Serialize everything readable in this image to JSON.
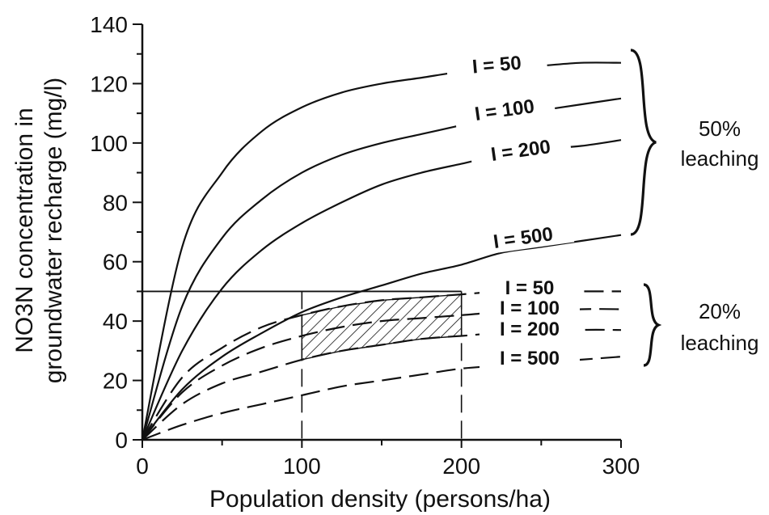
{
  "chart_data": {
    "type": "line",
    "title": "",
    "xlabel": "Population density (persons/ha)",
    "ylabel_line1": "NO3N concentration in",
    "ylabel_line2": "groundwater recharge (mg/l)",
    "xlim": [
      0,
      300
    ],
    "ylim": [
      0,
      140
    ],
    "xticks": [
      0,
      100,
      200,
      300
    ],
    "yticks": [
      0,
      20,
      40,
      60,
      80,
      100,
      120,
      140
    ],
    "x": [
      0,
      25,
      50,
      75,
      100,
      125,
      150,
      175,
      200,
      225,
      250,
      275,
      300
    ],
    "groups": [
      {
        "label_line1": "50%",
        "label_line2": "leaching",
        "style": "solid",
        "series": [
          {
            "name": "I = 50",
            "values": [
              0,
              65,
              90,
              104,
              112,
              117,
              120,
              122,
              124,
              125,
              126,
              127,
              127
            ]
          },
          {
            "name": "I = 100",
            "values": [
              0,
              45,
              68,
              81,
              90,
              96,
              100,
              103,
              106,
              109,
              111,
              113,
              115
            ]
          },
          {
            "name": "I = 200",
            "values": [
              0,
              30,
              51,
              64,
              73,
              80,
              86,
              90,
              93,
              96,
              98,
              99,
              101
            ]
          },
          {
            "name": "I = 500",
            "values": [
              0,
              17,
              28,
              36,
              43,
              48,
              52,
              56,
              59,
              63,
              65,
              67,
              69
            ]
          }
        ]
      },
      {
        "label_line1": "20%",
        "label_line2": "leaching",
        "style": "dashed",
        "series": [
          {
            "name": "I = 50",
            "values": [
              0,
              21,
              31,
              38,
              42,
              45,
              47,
              48,
              49,
              50,
              50,
              50,
              50
            ]
          },
          {
            "name": "I = 100",
            "values": [
              0,
              16,
              25,
              31,
              35,
              38,
              40,
              41,
              42,
              43,
              43,
              44,
              44
            ]
          },
          {
            "name": "I = 200",
            "values": [
              0,
              12,
              19,
              23,
              27,
              30,
              32,
              34,
              35,
              36,
              36,
              37,
              37
            ]
          },
          {
            "name": "I = 500",
            "values": [
              0,
              5,
              9,
              12,
              15,
              18,
              20,
              22,
              24,
              25,
              26,
              27,
              28
            ]
          }
        ]
      }
    ],
    "reference_line": {
      "y": 50
    },
    "reference_verticals": [
      100,
      200
    ],
    "hatched_region": {
      "x_range": [
        100,
        200
      ],
      "upper_series": "I = 50",
      "lower_series": "I = 200",
      "group": "20%"
    }
  }
}
